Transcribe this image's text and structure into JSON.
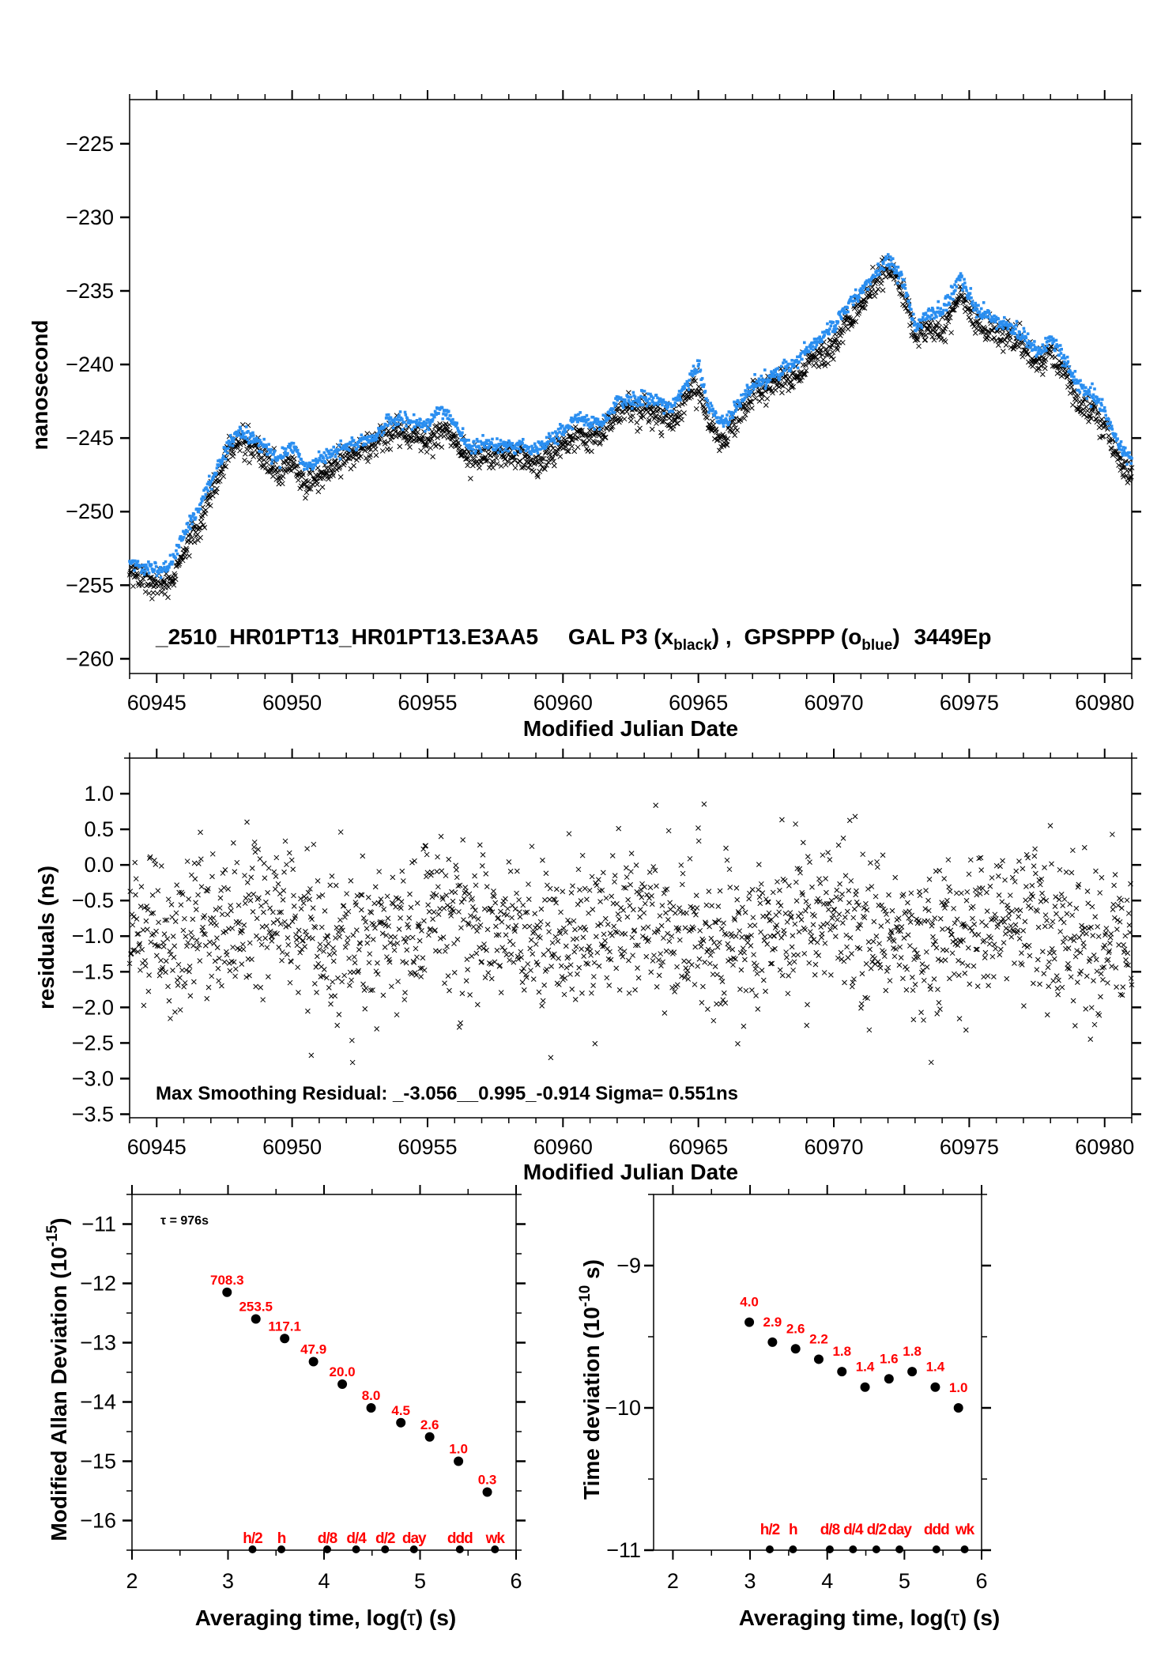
{
  "colors": {
    "black_series": "#000000",
    "blue_series": "#2a8ef0",
    "labels": "#ff0000"
  },
  "chart_data": [
    {
      "type": "scatter",
      "xlabel": "Modified Julian Date",
      "ylabel": "nanosecond",
      "xlim": [
        60944,
        60981
      ],
      "ylim": [
        -261,
        -222
      ],
      "xticks": [
        60945,
        60950,
        60955,
        60960,
        60965,
        60970,
        60975,
        60980
      ],
      "xtick_labels": [
        "60945",
        "60950",
        "60955",
        "60960",
        "60965",
        "60970",
        "60975",
        "60980"
      ],
      "yticks": [
        -225,
        -230,
        -235,
        -240,
        -245,
        -250,
        -255,
        -260
      ],
      "ytick_labels": [
        "−225",
        "−230",
        "−235",
        "−240",
        "−245",
        "−250",
        "−255",
        "−260"
      ],
      "grid": false,
      "title_parts": {
        "link": "_2510_HR01PT13_HR01PT13.E3AA5",
        "s1": "GAL P3 (x",
        "s1_sub": "black",
        "s1_end": ") ,",
        "s2": "GPSPPP (o",
        "s2_sub": "blue",
        "s2_end": ")",
        "epochs": "3449Ep"
      },
      "series": [
        {
          "name": "GAL P3",
          "marker": "x",
          "color": "#000000"
        },
        {
          "name": "GPSPPP",
          "marker": "o",
          "color": "#2a8ef0",
          "trend": {
            "x": [
              60944.0,
              60945.0,
              60945.5,
              60946.0,
              60946.5,
              60947.0,
              60947.5,
              60948.0,
              60949.0,
              60949.5,
              60950.0,
              60950.5,
              60951.0,
              60951.5,
              60952.0,
              60953.0,
              60953.5,
              60954.0,
              60955.0,
              60955.5,
              60956.0,
              60956.5,
              60957.0,
              60958.0,
              60959.0,
              60960.0,
              60960.5,
              60961.0,
              60961.5,
              60962.0,
              60963.0,
              60964.0,
              60964.5,
              60965.0,
              60965.3,
              60965.8,
              60966.0,
              60966.5,
              60967.0,
              60968.0,
              60968.5,
              60969.0,
              60969.5,
              60970.0,
              60970.5,
              60971.0,
              60971.5,
              60972.0,
              60972.5,
              60973.0,
              60973.5,
              60974.0,
              60974.7,
              60975.0,
              60975.5,
              60976.0,
              60977.0,
              60977.5,
              60978.0,
              60978.5,
              60979.0,
              60979.5,
              60980.0,
              60980.5,
              60981.0
            ],
            "y": [
              -253.5,
              -254.0,
              -253.7,
              -251.5,
              -250.0,
              -248.0,
              -246.0,
              -244.5,
              -245.5,
              -246.5,
              -245.5,
              -247.0,
              -246.5,
              -246.0,
              -245.5,
              -245.0,
              -244.0,
              -243.8,
              -244.0,
              -243.0,
              -244.0,
              -245.5,
              -245.5,
              -245.5,
              -245.8,
              -244.5,
              -243.5,
              -244.0,
              -243.8,
              -242.5,
              -242.3,
              -242.8,
              -241.5,
              -240.0,
              -242.5,
              -244.0,
              -244.0,
              -242.5,
              -241.5,
              -240.5,
              -240.0,
              -239.0,
              -238.3,
              -237.5,
              -236.0,
              -235.0,
              -234.0,
              -232.8,
              -234.0,
              -237.5,
              -236.5,
              -236.5,
              -234.0,
              -235.5,
              -236.5,
              -237.0,
              -238.0,
              -239.3,
              -238.3,
              -239.5,
              -241.5,
              -242.0,
              -243.0,
              -245.5,
              -246.5
            ]
          }
        }
      ]
    },
    {
      "type": "scatter",
      "xlabel": "Modified Julian Date",
      "ylabel": "residuals (ns)",
      "xlim": [
        60944,
        60981
      ],
      "ylim": [
        -3.55,
        1.5
      ],
      "xticks": [
        60945,
        60950,
        60955,
        60960,
        60965,
        60970,
        60975,
        60980
      ],
      "xtick_labels": [
        "60945",
        "60950",
        "60955",
        "60960",
        "60965",
        "60970",
        "60975",
        "60980"
      ],
      "yticks": [
        1.0,
        0.5,
        0.0,
        -0.5,
        -1.0,
        -1.5,
        -2.0,
        -2.5,
        -3.0,
        -3.5
      ],
      "ytick_labels": [
        "1.0",
        "0.5",
        "0.0",
        "−0.5",
        "−1.0",
        "−1.5",
        "−2.0",
        "−2.5",
        "−3.0",
        "−3.5"
      ],
      "grid": false,
      "annotation": "Max Smoothing Residual: _-3.056__0.995_-0.914  Sigma= 0.551ns",
      "stats": {
        "min": -3.056,
        "max": 0.995,
        "mean": -0.914,
        "sigma": 0.551
      },
      "series": [
        {
          "marker": "x",
          "color": "#000000"
        }
      ]
    },
    {
      "type": "scatter",
      "xlabel_parts": {
        "a": "Averaging time, log(",
        "tau": "τ",
        "b": ") (s)"
      },
      "ylabel_parts": {
        "a": "Modified Allan Deviation (10",
        "sup": "-15",
        "b": ")"
      },
      "xlim": [
        2,
        6
      ],
      "ylim": [
        -16.5,
        -10.5
      ],
      "xticks": [
        2,
        3,
        4,
        5,
        6
      ],
      "xtick_labels": [
        "2",
        "3",
        "4",
        "5",
        "6"
      ],
      "yticks": [
        -11,
        -12,
        -13,
        -14,
        -15,
        -16
      ],
      "ytick_labels": [
        "−11",
        "−12",
        "−13",
        "−14",
        "−15",
        "−16"
      ],
      "annotation": "τ = 976s",
      "points": {
        "x": [
          2.99,
          3.29,
          3.59,
          3.89,
          4.19,
          4.49,
          4.8,
          5.1,
          5.4,
          5.7
        ],
        "y": [
          -12.15,
          -12.6,
          -12.93,
          -13.32,
          -13.7,
          -14.1,
          -14.35,
          -14.59,
          -15.0,
          -15.52
        ],
        "labels": [
          "708.3",
          "253.5",
          "117.1",
          "47.9",
          "20.0",
          "8.0",
          "4.5",
          "2.6",
          "1.0",
          "0.3"
        ]
      },
      "markers": {
        "x": [
          3.255,
          3.556,
          4.033,
          4.334,
          4.636,
          4.936,
          5.414,
          5.78
        ],
        "labels": [
          "h/2",
          "h",
          "d/8",
          "d/4",
          "d/2",
          "day",
          "ddd",
          "wk"
        ]
      }
    },
    {
      "type": "scatter",
      "xlabel_parts": {
        "a": "Averaging time, log(",
        "tau": "τ",
        "b": ") (s)"
      },
      "ylabel_parts": {
        "a": "Time deviation (10",
        "sup": "-10",
        "b": " s)"
      },
      "xlim": [
        1.75,
        6
      ],
      "ylim": [
        -11,
        -8.5
      ],
      "xticks": [
        2,
        3,
        4,
        5,
        6
      ],
      "xtick_labels": [
        "2",
        "3",
        "4",
        "5",
        "6"
      ],
      "yticks": [
        -9,
        -10,
        -11
      ],
      "ytick_labels": [
        "−9",
        "−10",
        "−11"
      ],
      "points": {
        "x": [
          2.99,
          3.29,
          3.59,
          3.89,
          4.19,
          4.49,
          4.8,
          5.1,
          5.4,
          5.7
        ],
        "y": [
          -9.398,
          -9.538,
          -9.585,
          -9.658,
          -9.745,
          -9.854,
          -9.796,
          -9.745,
          -9.854,
          -10.0
        ],
        "labels": [
          "4.0",
          "2.9",
          "2.6",
          "2.2",
          "1.8",
          "1.4",
          "1.6",
          "1.8",
          "1.4",
          "1.0"
        ]
      },
      "markers": {
        "x": [
          3.255,
          3.556,
          4.033,
          4.334,
          4.636,
          4.936,
          5.414,
          5.78
        ],
        "labels": [
          "h/2",
          "h",
          "d/8",
          "d/4",
          "d/2",
          "day",
          "ddd",
          "wk"
        ]
      }
    }
  ]
}
